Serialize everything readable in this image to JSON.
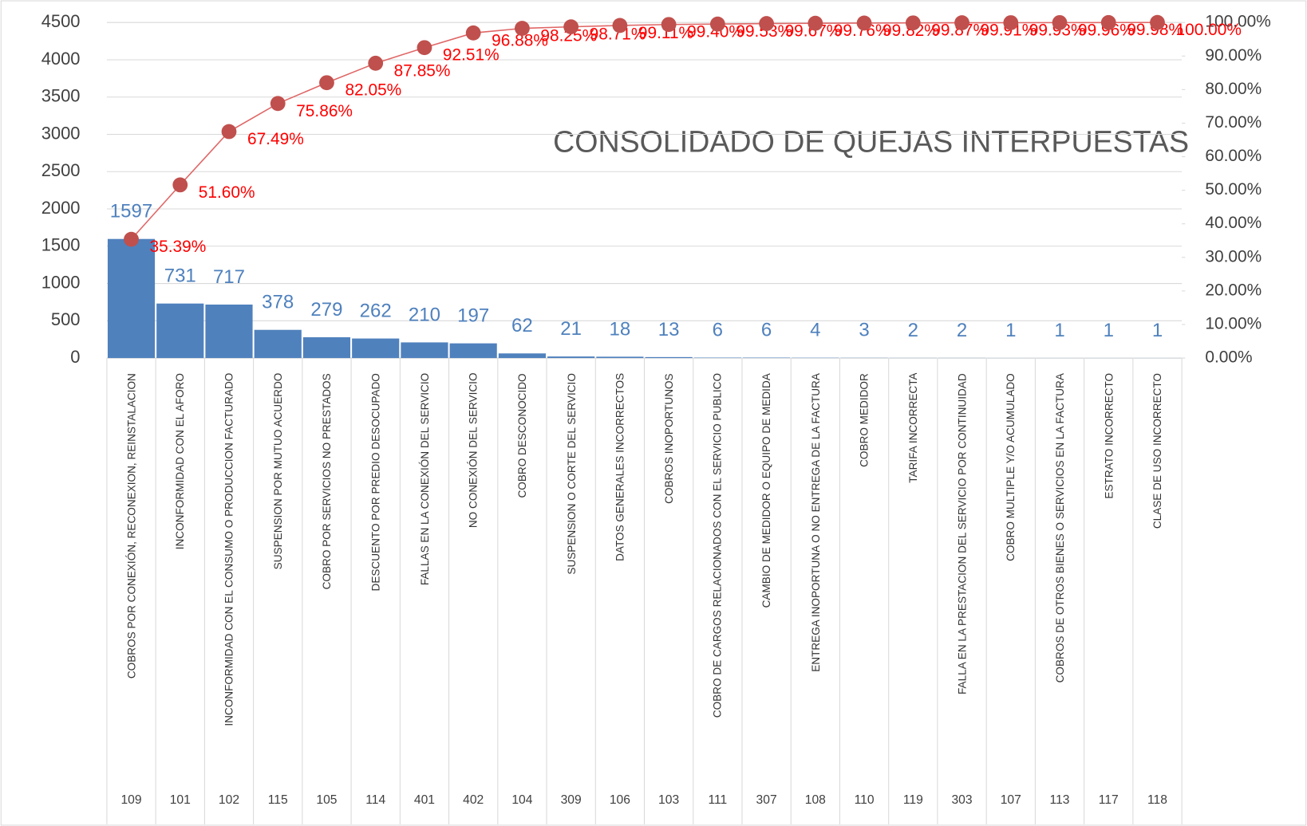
{
  "chart_data": {
    "type": "pareto",
    "title": "CONSOLIDADO DE QUEJAS INTERPUESTAS",
    "categories": [
      "COBROS POR CONEXIÓN, RECONEXION, REINSTALACION",
      "INCONFORMIDAD CON EL AFORO",
      "INCONFORMIDAD CON EL CONSUMO O PRODUCCION FACTURADO",
      "SUSPENSION POR MUTUO ACUERDO",
      "COBRO POR SERVICIOS NO PRESTADOS",
      "DESCUENTO POR PREDIO DESOCUPADO",
      "FALLAS EN LA CONEXIÓN DEL SERVICIO",
      "NO CONEXIÓN DEL SERVICIO",
      "COBRO DESCONOCIDO",
      "SUSPENSION O CORTE DEL SERVICIO",
      "DATOS GENERALES INCORRECTOS",
      "COBROS INOPORTUNOS",
      "COBRO DE CARGOS RELACIONADOS CON EL SERVICIO PUBLICO",
      "CAMBIO DE MEDIDOR O EQUIPO DE MEDIDA",
      "ENTREGA INOPORTUNA O NO ENTREGA DE LA FACTURA",
      "COBRO MEDIDOR",
      "TARIFA INCORRECTA",
      "FALLA EN LA PRESTACION DEL SERVICIO POR CONTINUIDAD",
      "COBRO MULTIPLE Y/O ACUMULADO",
      "COBROS DE OTROS BIENES O SERVICIOS EN LA FACTURA",
      "ESTRATO INCORRECTO",
      "CLASE DE USO INCORRECTO"
    ],
    "codes": [
      "109",
      "101",
      "102",
      "115",
      "105",
      "114",
      "401",
      "402",
      "104",
      "309",
      "106",
      "103",
      "111",
      "307",
      "108",
      "110",
      "119",
      "303",
      "107",
      "113",
      "117",
      "118"
    ],
    "series": [
      {
        "color": "#4f81bd",
        "values": [
          1597,
          731,
          717,
          378,
          279,
          262,
          210,
          197,
          62,
          21,
          18,
          13,
          6,
          6,
          4,
          3,
          2,
          2,
          1,
          1,
          1,
          1
        ]
      },
      {
        "color": "#c0504d",
        "axis": "y2",
        "values": [
          35.39,
          51.6,
          67.49,
          75.86,
          82.05,
          87.85,
          92.51,
          96.88,
          98.25,
          98.71,
          99.11,
          99.4,
          99.53,
          99.67,
          99.76,
          99.82,
          99.87,
          99.91,
          99.93,
          99.96,
          99.98,
          100.0
        ],
        "value_labels": [
          "35.39%",
          "51.60%",
          "67.49%",
          "75.86%",
          "82.05%",
          "87.85%",
          "92.51%",
          "96.88%",
          "98.25%",
          "98.71%",
          "99.11%",
          "99.40%",
          "99.53%",
          "99.67%",
          "99.76%",
          "99.82%",
          "99.87%",
          "99.91%",
          "99.93%",
          "99.96%",
          "99.98%",
          "100.00%"
        ]
      }
    ],
    "ylim": [
      0,
      4500
    ],
    "yticks": [
      0,
      500,
      1000,
      1500,
      2000,
      2500,
      3000,
      3500,
      4000,
      4500
    ],
    "y2lim": [
      0,
      100
    ],
    "y2ticks": [
      {
        "value": 0,
        "label": "0.00%"
      },
      {
        "value": 10,
        "label": "10.00%"
      },
      {
        "value": 20,
        "label": "20.00%"
      },
      {
        "value": 30,
        "label": "30.00%"
      },
      {
        "value": 40,
        "label": "40.00%"
      },
      {
        "value": 50,
        "label": "50.00%"
      },
      {
        "value": 60,
        "label": "60.00%"
      },
      {
        "value": 70,
        "label": "70.00%"
      },
      {
        "value": 80,
        "label": "80.00%"
      },
      {
        "value": 90,
        "label": "90.00%"
      },
      {
        "value": 100,
        "label": "100.00%"
      }
    ],
    "grid": true
  }
}
